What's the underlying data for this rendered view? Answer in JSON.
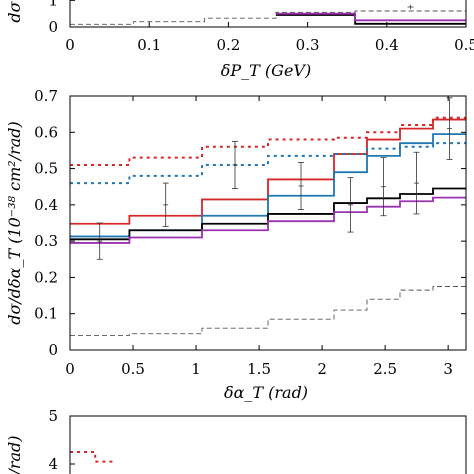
{
  "chart_data": [
    {
      "type": "line",
      "panel": "top (partially visible)",
      "xlabel": "δP_T (GeV)",
      "ylabel": "dσ",
      "xlim": [
        0,
        0.5
      ],
      "ylim": [
        0,
        1.5
      ],
      "x_ticks": [
        "0",
        "0.1",
        "0.2",
        "0.3",
        "0.4",
        "0.5"
      ],
      "y_ticks": [
        "0",
        "1"
      ],
      "series": [
        {
          "color": "#000000",
          "style": "solid step",
          "edges": [
            0.26,
            0.36,
            0.5
          ],
          "values": [
            0.45,
            0.12
          ]
        },
        {
          "color": "#9b30b0",
          "style": "solid step",
          "edges": [
            0.26,
            0.36,
            0.5
          ],
          "values": [
            0.5,
            0.25
          ]
        },
        {
          "color": "#555555",
          "style": "dashed step",
          "edges": [
            0,
            0.08,
            0.17,
            0.26,
            0.36,
            0.5
          ],
          "values": [
            0.1,
            0.2,
            0.33,
            0.55,
            0.6
          ]
        }
      ],
      "data_points": [
        {
          "x": 0.43,
          "y": 0.75,
          "err": 0.08
        }
      ]
    },
    {
      "type": "line",
      "panel": "middle",
      "xlabel": "δα_T (rad)",
      "ylabel": "dσ/dδα_T (10⁻³⁸ cm²/rad)",
      "xlim": [
        0,
        3.14159
      ],
      "ylim": [
        0,
        0.7
      ],
      "x_ticks": [
        "0",
        "0.5",
        "1",
        "1.5",
        "2",
        "2.5",
        "3"
      ],
      "y_ticks": [
        "0",
        "0.1",
        "0.2",
        "0.3",
        "0.4",
        "0.5",
        "0.6",
        "0.7"
      ],
      "grid": false,
      "bin_edges": [
        0,
        0.4712,
        1.0472,
        1.5708,
        2.0944,
        2.3562,
        2.618,
        2.8798,
        3.1416
      ],
      "series": [
        {
          "color": "#d62728",
          "style": "solid",
          "values": [
            0.348,
            0.37,
            0.415,
            0.47,
            0.54,
            0.58,
            0.61,
            0.635
          ]
        },
        {
          "color": "#1f77b4",
          "style": "solid",
          "values": [
            0.313,
            0.33,
            0.37,
            0.425,
            0.49,
            0.535,
            0.57,
            0.595
          ]
        },
        {
          "color": "#000000",
          "style": "solid",
          "values": [
            0.305,
            0.33,
            0.348,
            0.375,
            0.405,
            0.418,
            0.43,
            0.445
          ]
        },
        {
          "color": "#9b30b0",
          "style": "solid",
          "values": [
            0.295,
            0.31,
            0.33,
            0.355,
            0.38,
            0.395,
            0.41,
            0.42
          ]
        },
        {
          "color": "#d62728",
          "style": "dotted",
          "values": [
            0.51,
            0.53,
            0.56,
            0.58,
            0.585,
            0.6,
            0.62,
            0.64
          ]
        },
        {
          "color": "#1f77b4",
          "style": "dotted",
          "values": [
            0.46,
            0.48,
            0.51,
            0.535,
            0.54,
            0.555,
            0.56,
            0.57
          ]
        },
        {
          "color": "#555555",
          "style": "dashed",
          "values": [
            0.04,
            0.045,
            0.06,
            0.085,
            0.11,
            0.14,
            0.165,
            0.175
          ]
        }
      ],
      "data_points": [
        {
          "x": 0.2356,
          "y": 0.3,
          "err": 0.05
        },
        {
          "x": 0.7592,
          "y": 0.4,
          "err": 0.06
        },
        {
          "x": 1.309,
          "y": 0.51,
          "err": 0.065
        },
        {
          "x": 1.8326,
          "y": 0.452,
          "err": 0.065
        },
        {
          "x": 2.2253,
          "y": 0.4,
          "err": 0.075
        },
        {
          "x": 2.4871,
          "y": 0.45,
          "err": 0.08
        },
        {
          "x": 2.7489,
          "y": 0.46,
          "err": 0.085
        },
        {
          "x": 3.0107,
          "y": 0.61,
          "err": 0.085
        }
      ]
    },
    {
      "type": "line",
      "panel": "bottom (partially visible)",
      "ylabel": "/rad)",
      "ylim": [
        3.7,
        5
      ],
      "y_ticks": [
        "5",
        "4"
      ],
      "series": [
        {
          "color": "#d62728",
          "style": "dotted",
          "edges": [
            0,
            0.2,
            0.35
          ],
          "values": [
            4.25,
            4.05
          ]
        }
      ]
    }
  ]
}
